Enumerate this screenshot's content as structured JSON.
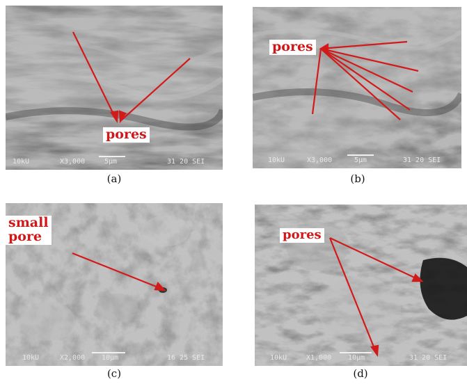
{
  "panels": [
    {
      "caption": "(a)",
      "label": "pores",
      "texture": "layered",
      "micrograph_info": {
        "voltage": "10kU",
        "magnification": "X3,000",
        "scale": "5μm",
        "id": "31 20 SEI"
      }
    },
    {
      "caption": "(b)",
      "label": "pores",
      "texture": "layered",
      "micrograph_info": {
        "voltage": "10kU",
        "magnification": "X3,000",
        "scale": "5μm",
        "id": "31 20 SEI"
      }
    },
    {
      "caption": "(c)",
      "label": "small pore",
      "label_line1": "small",
      "label_line2": "pore",
      "texture": "flaky",
      "micrograph_info": {
        "voltage": "10kU",
        "magnification": "X2,000",
        "scale": "10μm",
        "id": "16 25 SEI"
      }
    },
    {
      "caption": "(d)",
      "label": "pores",
      "texture": "rough",
      "micrograph_info": {
        "voltage": "10kU",
        "magnification": "X1,000",
        "scale": "10μm",
        "id": "31 20 SEI"
      }
    }
  ],
  "colors": {
    "arrow": "#d21a1a",
    "label_text": "#d01818",
    "label_bg": "#ffffff"
  }
}
